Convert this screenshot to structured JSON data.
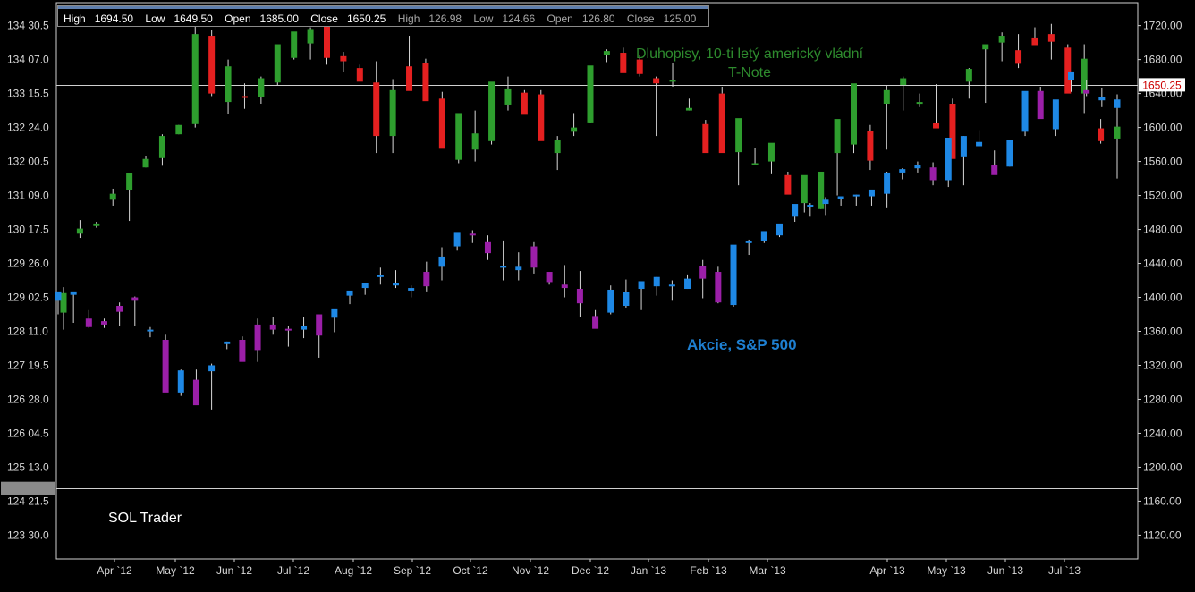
{
  "infobar": {
    "sp": [
      {
        "label": "High",
        "value": "1694.50"
      },
      {
        "label": "Low",
        "value": "1649.50"
      },
      {
        "label": "Open",
        "value": "1685.00"
      },
      {
        "label": "Close",
        "value": "1650.25"
      }
    ],
    "bond": [
      {
        "label": "High",
        "value": "126.98"
      },
      {
        "label": "Low",
        "value": "124.66"
      },
      {
        "label": "Open",
        "value": "126.80"
      },
      {
        "label": "Close",
        "value": "125.00"
      }
    ]
  },
  "annotations": {
    "bond_label": "Dluhopisy, 10-ti letý americký vládní T-Note",
    "stock_label": "Akcie, S&P 500",
    "watermark": "SOL Trader"
  },
  "current_price_tag": "1650.25",
  "colors": {
    "background": "#000000",
    "bond_up": "#2e9e2e",
    "bond_down": "#e52020",
    "stock_up": "#1e88e5",
    "stock_down": "#9b1fa8",
    "bond_label": "#2e8b2e",
    "stock_label": "#1e7fd0",
    "price_tag": "#cc0000"
  },
  "chart_data": {
    "type": "candlestick",
    "x_ticks": [
      "Apr `12",
      "May `12",
      "Jun `12",
      "Jul `12",
      "Aug `12",
      "Sep `12",
      "Oct `12",
      "Nov `12",
      "Dec `12",
      "Jan `13",
      "Feb `13",
      "Mar `13",
      "Apr `13",
      "May `13",
      "Jun `13",
      "Jul `13"
    ],
    "left_axis_ticks": [
      "134 30.5",
      "134 07.0",
      "133 15.5",
      "132 24.0",
      "132 00.5",
      "131 09.0",
      "130 17.5",
      "129 26.0",
      "129 02.5",
      "128 11.0",
      "127 19.5",
      "126 28.0",
      "126 04.5",
      "125 13.0",
      "124 21.5",
      "123 30.0"
    ],
    "right_axis_ticks": [
      1720,
      1680,
      1640,
      1600,
      1560,
      1520,
      1480,
      1440,
      1400,
      1360,
      1320,
      1280,
      1240,
      1200,
      1160,
      1120
    ],
    "right_axis_range": [
      1092,
      1747
    ],
    "reference_lines": [
      1650.25,
      1175
    ],
    "series": [
      {
        "name": "Dluhopisy, 10-ti letý americký vládní T-Note",
        "axis": "left",
        "candles": [
          [
            1382,
            1362,
            1412,
            1405
          ],
          [
            1475,
            1470,
            1491,
            1481
          ],
          [
            1484,
            1482,
            1489,
            1487
          ],
          [
            1515,
            1508,
            1528,
            1522
          ],
          [
            1526,
            1490,
            1538,
            1546
          ],
          [
            1553,
            1553,
            1566,
            1563
          ],
          [
            1564,
            1555,
            1592,
            1590
          ],
          [
            1592,
            1592,
            1603,
            1603
          ],
          [
            1604,
            1600,
            1735,
            1710
          ],
          [
            1708,
            1637,
            1715,
            1640
          ],
          [
            1630,
            1616,
            1680,
            1672
          ],
          [
            1637,
            1622,
            1652,
            1636
          ],
          [
            1636,
            1628,
            1660,
            1658
          ],
          [
            1653,
            1650,
            1683,
            1698
          ],
          [
            1682,
            1680,
            1700,
            1713
          ],
          [
            1699,
            1680,
            1718,
            1716
          ],
          [
            1722,
            1674,
            1730,
            1682
          ],
          [
            1684,
            1665,
            1689,
            1678
          ],
          [
            1670,
            1655,
            1674,
            1654
          ],
          [
            1653,
            1570,
            1678,
            1590
          ],
          [
            1590,
            1570,
            1657,
            1644
          ],
          [
            1672,
            1650,
            1708,
            1643
          ],
          [
            1676,
            1647,
            1681,
            1631
          ],
          [
            1634,
            1577,
            1642,
            1575
          ],
          [
            1562,
            1558,
            1610,
            1617
          ],
          [
            1574,
            1560,
            1620,
            1593
          ],
          [
            1584,
            1580,
            1650,
            1654
          ],
          [
            1627,
            1620,
            1660,
            1646
          ],
          [
            1641,
            1616,
            1644,
            1615
          ],
          [
            1639,
            1595,
            1644,
            1584
          ],
          [
            1570,
            1550,
            1590,
            1585
          ],
          [
            1595,
            1590,
            1617,
            1600
          ],
          [
            1606,
            1605,
            1665,
            1673
          ],
          [
            1685,
            1677,
            1692,
            1690
          ],
          [
            1688,
            1672,
            1694,
            1664
          ],
          [
            1680,
            1660,
            1685,
            1663
          ],
          [
            1658,
            1590,
            1660,
            1652
          ],
          [
            1655,
            1648,
            1676,
            1656
          ],
          [
            1620,
            1620,
            1634,
            1623
          ],
          [
            1604,
            1580,
            1609,
            1570
          ],
          [
            1640,
            1640,
            1648,
            1570
          ],
          [
            1571,
            1532,
            1590,
            1611
          ],
          [
            1556,
            1556,
            1576,
            1558
          ],
          [
            1560,
            1545,
            1580,
            1582
          ],
          [
            1544,
            1524,
            1548,
            1521
          ],
          [
            1511,
            1500,
            1525,
            1544
          ],
          [
            1504,
            1504,
            1545,
            1548
          ],
          [
            1570,
            1520,
            1580,
            1610
          ],
          [
            1580,
            1570,
            1620,
            1652
          ],
          [
            1596,
            1550,
            1603,
            1561
          ],
          [
            1628,
            1574,
            1650,
            1644
          ],
          [
            1650,
            1620,
            1660,
            1658
          ],
          [
            1628,
            1624,
            1640,
            1630
          ],
          [
            1605,
            1605,
            1651,
            1599
          ],
          [
            1628,
            1572,
            1634,
            1563
          ],
          [
            1654,
            1634,
            1670,
            1669
          ],
          [
            1692,
            1629,
            1697,
            1698
          ],
          [
            1700,
            1678,
            1712,
            1708
          ],
          [
            1691,
            1670,
            1710,
            1675
          ],
          [
            1706,
            1702,
            1718,
            1697
          ],
          [
            1710,
            1680,
            1722,
            1701
          ],
          [
            1694,
            1666,
            1698,
            1640
          ],
          [
            1640,
            1617,
            1698,
            1681
          ],
          [
            1599,
            1581,
            1610,
            1584
          ],
          [
            1587,
            1540,
            1630,
            1601
          ]
        ]
      },
      {
        "name": "Akcie, S&P 500",
        "axis": "right",
        "candles": [
          [
            1396,
            1380,
            1401,
            1407
          ],
          [
            1403,
            1370,
            1405,
            1407
          ],
          [
            1375,
            1364,
            1385,
            1365
          ],
          [
            1372,
            1364,
            1375,
            1368
          ],
          [
            1390,
            1366,
            1394,
            1383
          ],
          [
            1400,
            1366,
            1401,
            1396
          ],
          [
            1360,
            1353,
            1365,
            1362
          ],
          [
            1350,
            1290,
            1356,
            1288
          ],
          [
            1288,
            1284,
            1315,
            1314
          ],
          [
            1303,
            1279,
            1315,
            1273
          ],
          [
            1313,
            1268,
            1322,
            1320
          ],
          [
            1345,
            1339,
            1348,
            1348
          ],
          [
            1350,
            1328,
            1354,
            1324
          ],
          [
            1368,
            1324,
            1375,
            1338
          ],
          [
            1368,
            1356,
            1377,
            1362
          ],
          [
            1363,
            1342,
            1366,
            1361
          ],
          [
            1362,
            1352,
            1377,
            1366
          ],
          [
            1380,
            1329,
            1380,
            1355
          ],
          [
            1376,
            1359,
            1383,
            1387
          ],
          [
            1402,
            1392,
            1407,
            1408
          ],
          [
            1411,
            1403,
            1417,
            1417
          ],
          [
            1426,
            1415,
            1435,
            1426
          ],
          [
            1414,
            1411,
            1432,
            1417
          ],
          [
            1408,
            1400,
            1414,
            1411
          ],
          [
            1430,
            1407,
            1442,
            1413
          ],
          [
            1436,
            1420,
            1459,
            1448
          ],
          [
            1460,
            1455,
            1468,
            1477
          ],
          [
            1475,
            1464,
            1479,
            1473
          ],
          [
            1465,
            1444,
            1473,
            1452
          ],
          [
            1437,
            1420,
            1467,
            1437
          ],
          [
            1432,
            1420,
            1453,
            1436
          ],
          [
            1460,
            1428,
            1465,
            1435
          ],
          [
            1430,
            1415,
            1427,
            1418
          ],
          [
            1415,
            1400,
            1438,
            1411
          ],
          [
            1410,
            1377,
            1431,
            1393
          ],
          [
            1378,
            1365,
            1385,
            1363
          ],
          [
            1382,
            1380,
            1414,
            1409
          ],
          [
            1390,
            1388,
            1421,
            1406
          ],
          [
            1410,
            1385,
            1417,
            1419
          ],
          [
            1413,
            1402,
            1424,
            1424
          ],
          [
            1413,
            1396,
            1420,
            1415
          ],
          [
            1410,
            1410,
            1427,
            1422
          ],
          [
            1437,
            1399,
            1444,
            1422
          ],
          [
            1430,
            1393,
            1436,
            1394
          ],
          [
            1391,
            1389,
            1445,
            1462
          ],
          [
            1465,
            1450,
            1468,
            1466
          ],
          [
            1466,
            1464,
            1475,
            1478
          ],
          [
            1473,
            1471,
            1485,
            1487
          ],
          [
            1495,
            1489,
            1506,
            1510
          ],
          [
            1509,
            1495,
            1511,
            1509
          ],
          [
            1510,
            1497,
            1518,
            1515
          ],
          [
            1516,
            1508,
            1519,
            1519
          ],
          [
            1520,
            1508,
            1521,
            1521
          ],
          [
            1519,
            1508,
            1525,
            1527
          ],
          [
            1522,
            1505,
            1548,
            1547
          ],
          [
            1547,
            1539,
            1552,
            1551
          ],
          [
            1552,
            1547,
            1560,
            1556
          ],
          [
            1553,
            1532,
            1559,
            1538
          ],
          [
            1538,
            1530,
            1581,
            1588
          ],
          [
            1565,
            1532,
            1590,
            1590
          ],
          [
            1578,
            1578,
            1597,
            1583
          ],
          [
            1556,
            1553,
            1573,
            1544
          ],
          [
            1554,
            1554,
            1580,
            1585
          ],
          [
            1595,
            1590,
            1625,
            1643
          ],
          [
            1643,
            1620,
            1648,
            1610
          ],
          [
            1598,
            1590,
            1617,
            1633
          ],
          [
            1656,
            1642,
            1664,
            1666
          ],
          [
            1644,
            1637,
            1656,
            1640
          ],
          [
            1632,
            1624,
            1647,
            1636
          ],
          [
            1623,
            1613,
            1639,
            1633
          ]
        ]
      }
    ]
  }
}
